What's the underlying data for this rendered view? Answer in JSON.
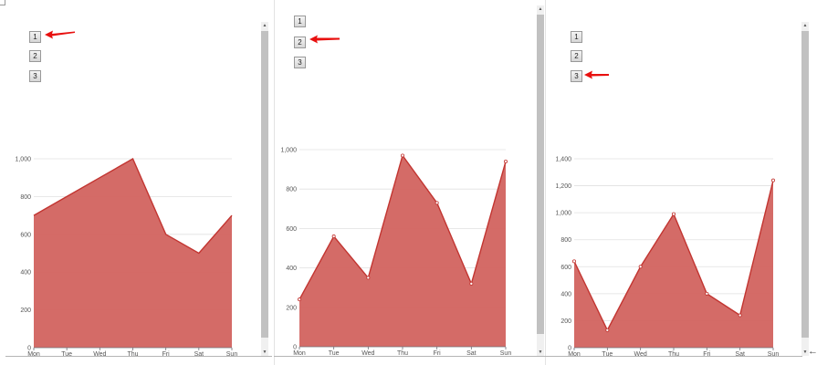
{
  "page": {
    "buttons": [
      "1",
      "2",
      "3"
    ],
    "resize_glyph": "←"
  },
  "colors": {
    "area_fill": "#d2635f",
    "area_stroke": "#c23531",
    "gridline": "#e0e0e0",
    "arrow": "#e8100f"
  },
  "chart_data": [
    {
      "type": "area",
      "selected_button": "1",
      "categories": [
        "Mon",
        "Tue",
        "Wed",
        "Thu",
        "Fri",
        "Sat",
        "Sun"
      ],
      "values": [
        700,
        800,
        900,
        1000,
        600,
        500,
        700
      ],
      "ylim": [
        0,
        1000
      ],
      "yticks": [
        0,
        200,
        400,
        600,
        800,
        1000
      ],
      "ytick_labels": [
        "0",
        "200",
        "400",
        "600",
        "800",
        "1,000"
      ],
      "show_markers": false,
      "grid": true
    },
    {
      "type": "area",
      "selected_button": "2",
      "categories": [
        "Mon",
        "Tue",
        "Wed",
        "Thu",
        "Fri",
        "Sat",
        "Sun"
      ],
      "values": [
        240,
        560,
        350,
        970,
        730,
        320,
        940
      ],
      "ylim": [
        0,
        1000
      ],
      "yticks": [
        0,
        200,
        400,
        600,
        800,
        1000
      ],
      "ytick_labels": [
        "0",
        "200",
        "400",
        "600",
        "800",
        "1,000"
      ],
      "show_markers": true,
      "grid": true
    },
    {
      "type": "area",
      "selected_button": "3",
      "categories": [
        "Mon",
        "Tue",
        "Wed",
        "Thu",
        "Fri",
        "Sat",
        "Sun"
      ],
      "values": [
        640,
        130,
        600,
        990,
        400,
        240,
        1240
      ],
      "ylim": [
        0,
        1400
      ],
      "yticks": [
        0,
        200,
        400,
        600,
        800,
        1000,
        1200,
        1400
      ],
      "ytick_labels": [
        "0",
        "200",
        "400",
        "600",
        "800",
        "1,000",
        "1,200",
        "1,400"
      ],
      "show_markers": true,
      "grid": true
    }
  ]
}
